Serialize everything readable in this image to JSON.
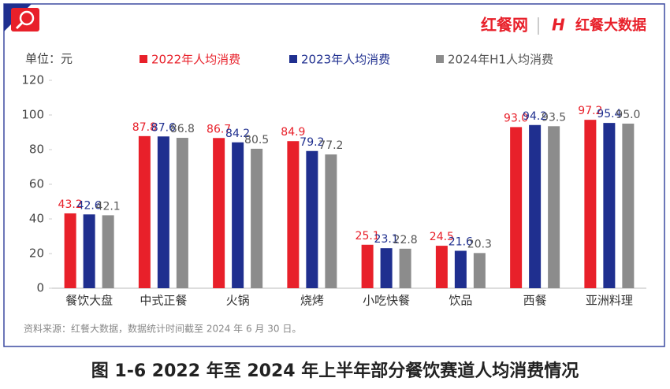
{
  "chart_data": {
    "type": "bar",
    "title": "图 1-6    2022 年至 2024 年上半年部分餐饮赛道人均消费情况",
    "unit_label": "单位：元",
    "source": "资料来源：红餐大数据，数据统计时间截至 2024 年 6 月 30 日。",
    "logo_left": "红餐网",
    "logo_right": "红餐大数据",
    "categories": [
      "餐饮大盘",
      "中式正餐",
      "火锅",
      "烧烤",
      "小吃快餐",
      "饮品",
      "西餐",
      "亚洲料理"
    ],
    "series": [
      {
        "name": "2022年人均消费",
        "color": "#e8202a",
        "values": [
          43.2,
          87.8,
          86.7,
          84.9,
          25.1,
          24.5,
          93.0,
          97.2
        ],
        "value_labels": [
          "43.2",
          "87.8",
          "86.7",
          "84.9",
          "25.1",
          "24.5",
          "93.0",
          "97.2"
        ]
      },
      {
        "name": "2023年人均消费",
        "color": "#1f2f8f",
        "values": [
          42.6,
          87.6,
          84.2,
          79.2,
          23.1,
          21.6,
          94.2,
          95.4
        ],
        "value_labels": [
          "42.6",
          "87.6",
          "84.2",
          "79.2",
          "23.1",
          "21.6",
          "94.2",
          "95.4"
        ]
      },
      {
        "name": "2024年H1人均消费",
        "color": "#8c8c8c",
        "values": [
          42.1,
          86.8,
          80.5,
          77.2,
          22.8,
          20.3,
          93.5,
          95.0
        ],
        "value_labels": [
          "42.1",
          "86.8",
          "80.5",
          "77.2",
          "22.8",
          "20.3",
          "93.5",
          "95.0"
        ]
      }
    ],
    "ylim": [
      0,
      120
    ],
    "yticks": [
      0,
      20,
      40,
      60,
      80,
      100,
      120
    ]
  }
}
